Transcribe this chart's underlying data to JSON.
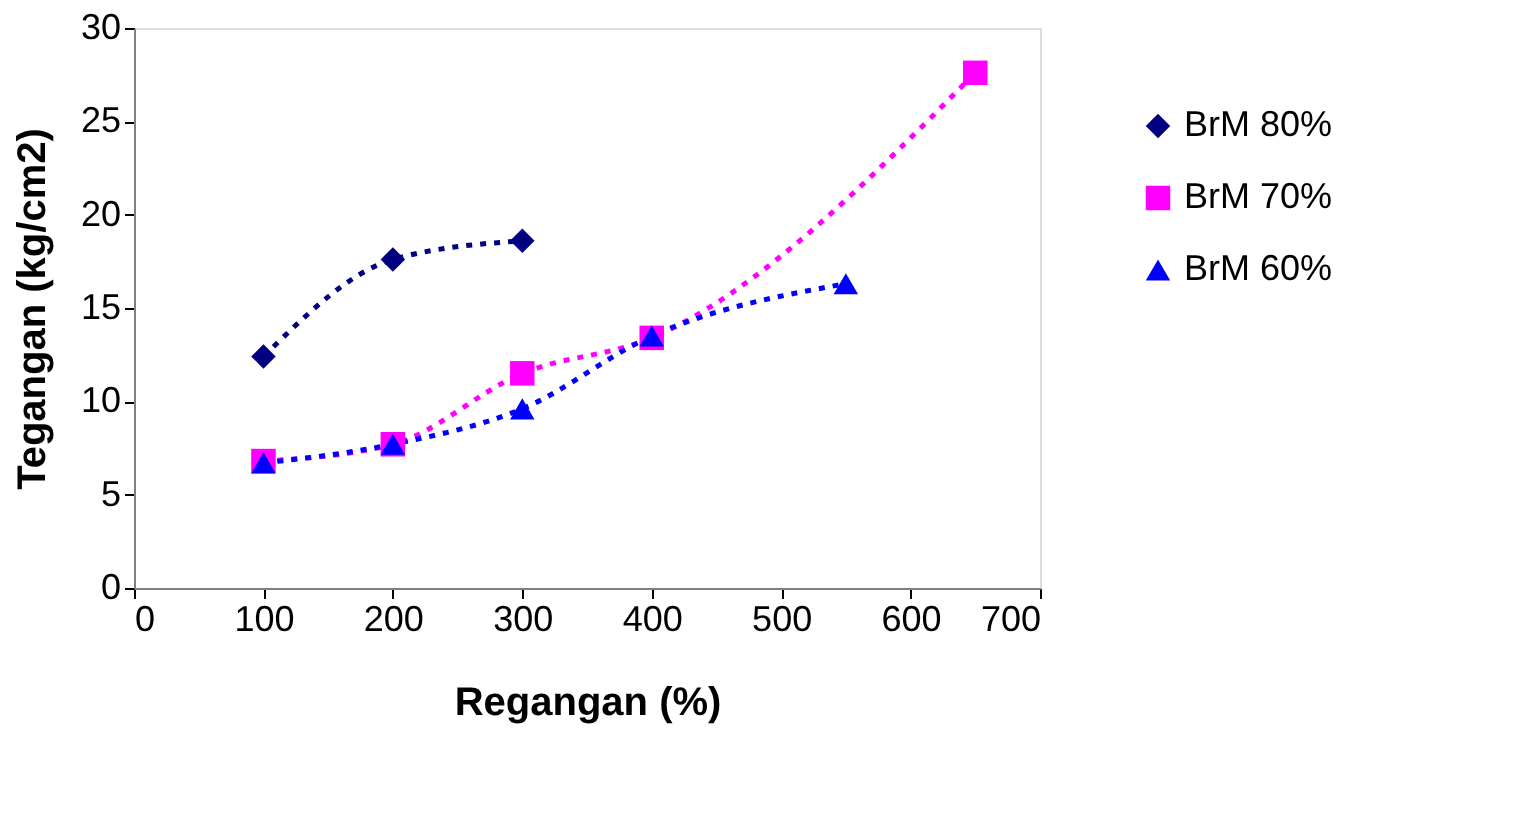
{
  "chart_data": {
    "type": "line",
    "xlabel": "Regangan (%)",
    "ylabel": "Tegangan (kg/cm2)",
    "xlim": [
      0,
      700
    ],
    "xticks": [
      0,
      100,
      200,
      300,
      400,
      500,
      600,
      700
    ],
    "ylim": [
      0,
      30
    ],
    "yticks": [
      0,
      5,
      10,
      15,
      20,
      25,
      30
    ],
    "grid": false,
    "legend": "right",
    "line_style": "dotted",
    "series": [
      {
        "name": "BrM 80%",
        "color": "#000080",
        "marker": "diamond",
        "x": [
          100,
          200,
          300
        ],
        "values": [
          12.4,
          17.6,
          18.6
        ]
      },
      {
        "name": "BrM 70%",
        "color": "#ff00ff",
        "marker": "square",
        "x": [
          100,
          200,
          300,
          400,
          650
        ],
        "values": [
          6.8,
          7.7,
          11.5,
          13.4,
          27.6
        ]
      },
      {
        "name": "BrM 60%",
        "color": "#0000ff",
        "marker": "triangle",
        "x": [
          100,
          200,
          300,
          400,
          550
        ],
        "values": [
          6.7,
          7.7,
          9.6,
          13.5,
          16.3
        ]
      }
    ]
  }
}
